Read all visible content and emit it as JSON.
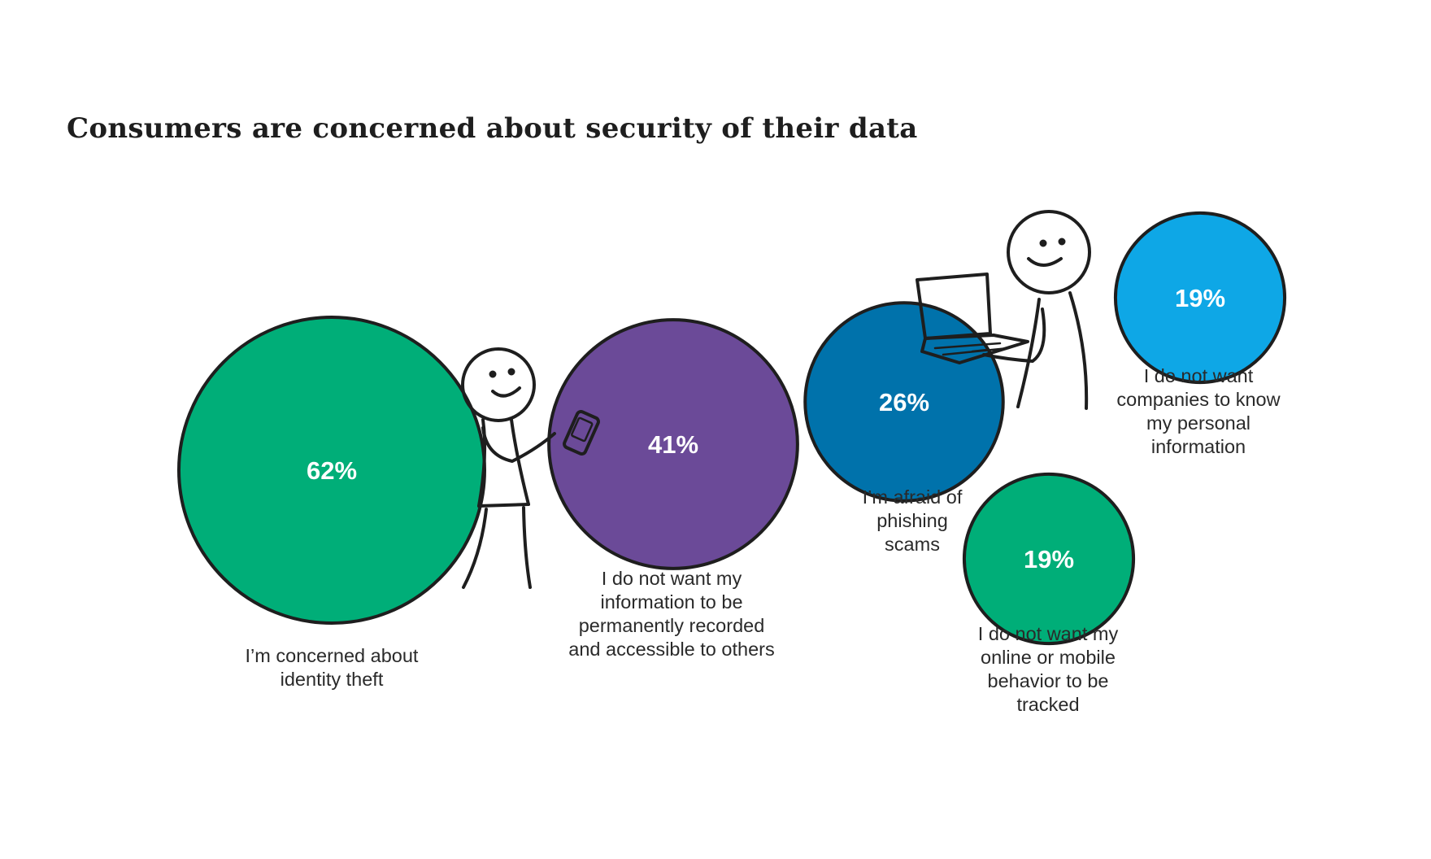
{
  "chart_data": {
    "type": "bubble",
    "title": "Consumers are concerned about security of their data",
    "unit": "%",
    "series": [
      {
        "label": "I’m concerned about identity theft",
        "value": 62,
        "value_label": "62%",
        "color": "#00ae78",
        "label_lines": [
          "I’m concerned about",
          "identity theft"
        ]
      },
      {
        "label": "I do not want my information to be permanently recorded and accessible to others",
        "value": 41,
        "value_label": "41%",
        "color": "#6b4a98",
        "label_lines": [
          "I do not want my",
          "information to be",
          "permanently recorded",
          "and accessible to others"
        ]
      },
      {
        "label": "I’m afraid of phishing scams",
        "value": 26,
        "value_label": "26%",
        "color": "#0072ab",
        "label_lines": [
          "I’m afraid of",
          "phishing",
          "scams"
        ]
      },
      {
        "label": "I do not want companies to know my personal information",
        "value": 19,
        "value_label": "19%",
        "color": "#0ea7e6",
        "label_lines": [
          "I do not want",
          "companies to know",
          "my personal",
          "information"
        ]
      },
      {
        "label": "I do not want my online or mobile behavior to be tracked",
        "value": 19,
        "value_label": "19%",
        "color": "#00ae78",
        "label_lines": [
          "I do not want my",
          "online or mobile",
          "behavior to be",
          "tracked"
        ]
      }
    ],
    "outline_color": "#1e1e1e"
  }
}
